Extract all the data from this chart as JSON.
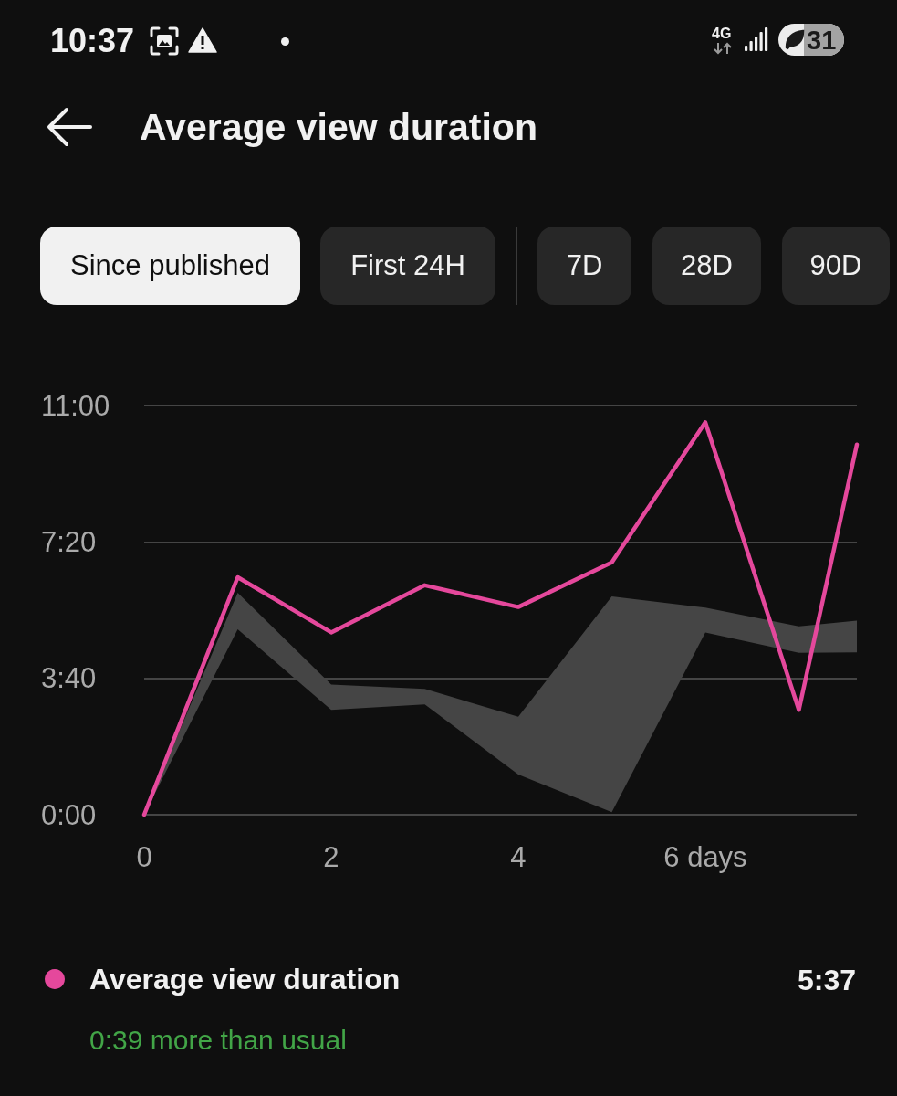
{
  "chart_data": {
    "type": "line",
    "title": "Average view duration",
    "x": [
      0,
      1,
      2,
      3,
      4,
      5,
      6,
      7,
      7.62
    ],
    "series": [
      {
        "name": "Average view duration",
        "color": "#e5489c",
        "values": [
          0,
          383,
          294,
          370,
          335,
          407,
          633,
          169,
          597
        ],
        "lower": [
          0,
          299,
          169,
          178,
          65,
          4,
          294,
          261,
          262
        ],
        "upper": [
          0,
          358,
          210,
          203,
          158,
          352,
          334,
          304,
          313
        ]
      }
    ],
    "xlim": [
      0,
      7.62
    ],
    "xticks": [
      0,
      2,
      4,
      {
        "value": 6,
        "label": "6 days"
      }
    ],
    "ylim": [
      0,
      660
    ],
    "yticks": [
      {
        "value": 0,
        "label": "0:00"
      },
      {
        "value": 220,
        "label": "3:40"
      },
      {
        "value": 440,
        "label": "7:20"
      },
      {
        "value": 660,
        "label": "11:00"
      }
    ],
    "grid": "y",
    "legend": "bottom",
    "marker": "none",
    "line_style": "solid",
    "annotations": [
      "10:37",
      "4G",
      "31",
      "Since published",
      "First 24H",
      "7D",
      "28D",
      "90D",
      "5:37",
      "0:39 more than usual"
    ]
  }
}
